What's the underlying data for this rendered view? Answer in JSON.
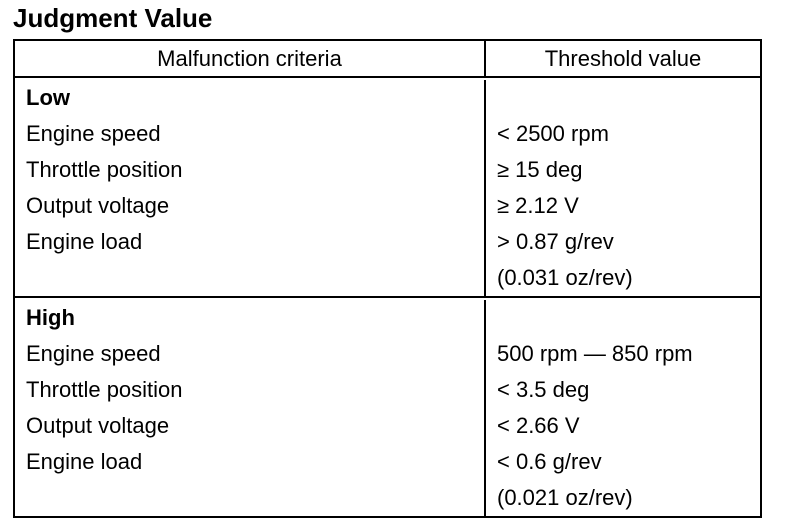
{
  "header": {
    "title": "Judgment Value"
  },
  "table": {
    "columns": [
      "Malfunction criteria",
      "Threshold value"
    ],
    "sections": [
      {
        "title": "Low",
        "rows": [
          {
            "criteria": "Engine speed",
            "threshold": [
              "< 2500 rpm"
            ]
          },
          {
            "criteria": "Throttle position",
            "threshold": [
              "≥ 15 deg"
            ]
          },
          {
            "criteria": "Output voltage",
            "threshold": [
              "≥ 2.12 V"
            ]
          },
          {
            "criteria": "Engine load",
            "threshold": [
              "> 0.87 g/rev",
              "(0.031 oz/rev)"
            ]
          }
        ]
      },
      {
        "title": "High",
        "rows": [
          {
            "criteria": "Engine speed",
            "threshold": [
              "500 rpm — 850 rpm"
            ]
          },
          {
            "criteria": "Throttle position",
            "threshold": [
              "< 3.5 deg"
            ]
          },
          {
            "criteria": "Output voltage",
            "threshold": [
              "< 2.66 V"
            ]
          },
          {
            "criteria": "Engine load",
            "threshold": [
              "< 0.6 g/rev",
              "(0.021 oz/rev)"
            ]
          }
        ]
      }
    ]
  }
}
